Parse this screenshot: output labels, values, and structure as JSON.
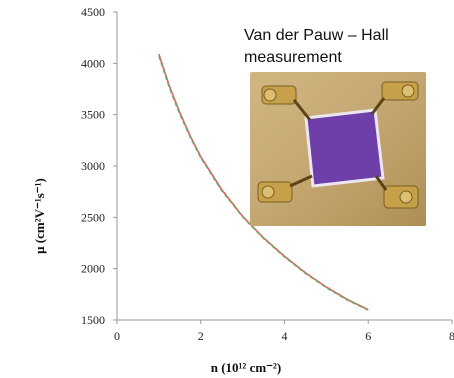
{
  "chart_data": {
    "type": "line",
    "xlabel": "n  (10¹² cm⁻²)",
    "ylabel": "μ (cm²V⁻¹s⁻¹)",
    "xlim": [
      0,
      8
    ],
    "ylim": [
      1500,
      4500
    ],
    "xticks": [
      0,
      2,
      4,
      6,
      8
    ],
    "yticks": [
      1500,
      2000,
      2500,
      3000,
      3500,
      4000,
      4500
    ],
    "xtick_labels": [
      "0",
      "2",
      "4",
      "6",
      "8"
    ],
    "ytick_labels": [
      "1500",
      "2000",
      "2500",
      "3000",
      "3500",
      "4000",
      "4500"
    ],
    "grid": false,
    "series": [
      {
        "color": "#e0605a",
        "style": "solid",
        "x": [
          1.0,
          1.25,
          1.5,
          1.75,
          2.0,
          2.5,
          3.0,
          3.5,
          4.0,
          4.5,
          5.0,
          5.5,
          6.0
        ],
        "y": [
          4090,
          3780,
          3520,
          3290,
          3090,
          2770,
          2510,
          2300,
          2120,
          1960,
          1820,
          1700,
          1600
        ]
      },
      {
        "color": "#6fa86a",
        "style": "dashed",
        "x": [
          1.0,
          1.25,
          1.5,
          1.75,
          2.0,
          2.5,
          3.0,
          3.5,
          4.0,
          4.5,
          5.0,
          5.5,
          6.0
        ],
        "y": [
          4070,
          3765,
          3505,
          3280,
          3080,
          2760,
          2505,
          2295,
          2115,
          1955,
          1815,
          1695,
          1595
        ]
      }
    ]
  },
  "inset": {
    "title_line1": "Van der Pauw – Hall",
    "title_line2": "measurement",
    "sample_color": "#6e3fa8",
    "background_color": "#c9a86a",
    "probe_color": "#c6a14a"
  }
}
